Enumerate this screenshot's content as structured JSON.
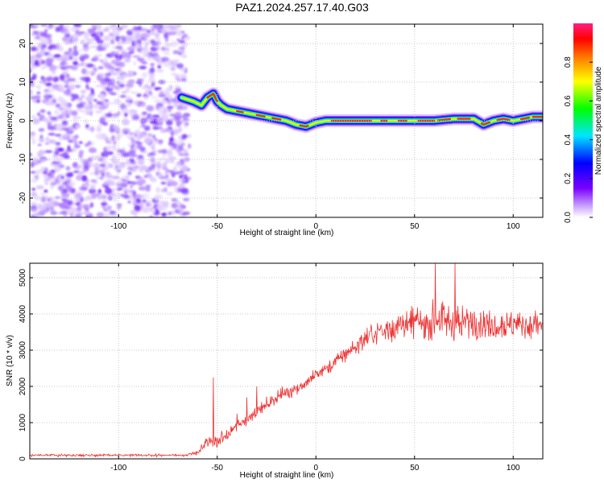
{
  "page": {
    "title": "PAZ1.2024.257.17.40.G03"
  },
  "chart_data": [
    {
      "type": "heatmap",
      "xlabel": "Height of straight line (km)",
      "ylabel": "Frequency (Hz)",
      "xlim": [
        -145,
        115
      ],
      "ylim": [
        -25,
        25
      ],
      "xticks": [
        -100,
        -50,
        0,
        50,
        100
      ],
      "yticks": [
        -20,
        -10,
        0,
        10,
        20
      ],
      "colorbar": {
        "label": "Normalized spectral amplitude",
        "range": [
          0,
          1
        ],
        "ticks": [
          "0.0",
          "0.2",
          "0.4",
          "0.6",
          "0.8"
        ],
        "tick_values": [
          0,
          0.2,
          0.4,
          0.6,
          0.8
        ],
        "colors": [
          "#ffffff",
          "#c8a0ff",
          "#7a00ff",
          "#0000ff",
          "#00e5ff",
          "#00ff00",
          "#ffff00",
          "#ff7f00",
          "#ff0000",
          "#ff1f80"
        ]
      },
      "noise_region_x": [
        -145,
        -65
      ],
      "ridge": {
        "x": [
          -68,
          -62,
          -58,
          -55,
          -52,
          -50,
          -48,
          -45,
          -40,
          -35,
          -30,
          -25,
          -20,
          -15,
          -10,
          -5,
          0,
          5,
          10,
          20,
          30,
          40,
          50,
          60,
          70,
          80,
          85,
          90,
          95,
          100,
          105,
          110,
          115
        ],
        "y": [
          6,
          5,
          4,
          6,
          7,
          5,
          4,
          3,
          2.5,
          2,
          1.5,
          1,
          0.5,
          0,
          -1,
          -1.5,
          -0.5,
          0,
          0,
          0,
          0,
          0,
          0,
          0,
          0.5,
          0.5,
          -1,
          0,
          0.5,
          0,
          0.5,
          1,
          1
        ]
      }
    },
    {
      "type": "line",
      "xlabel": "Height of straight line (km)",
      "ylabel": "SNR (10 * v/v)",
      "xlim": [
        -145,
        115
      ],
      "ylim": [
        0,
        5400
      ],
      "xticks": [
        -100,
        -50,
        0,
        50,
        100
      ],
      "yticks": [
        0,
        1000,
        2000,
        3000,
        4000,
        5000
      ],
      "color": "#ee3333",
      "envelope": {
        "x": [
          -145,
          -100,
          -65,
          -60,
          -55,
          -50,
          -45,
          -40,
          -35,
          -30,
          -25,
          -20,
          -15,
          -10,
          -5,
          0,
          5,
          10,
          15,
          20,
          25,
          30,
          40,
          50,
          60,
          70,
          80,
          90,
          100,
          115
        ],
        "mean": [
          100,
          100,
          100,
          180,
          450,
          500,
          650,
          900,
          1100,
          1300,
          1500,
          1700,
          1850,
          1950,
          2100,
          2300,
          2500,
          2700,
          2900,
          3100,
          3300,
          3450,
          3650,
          3750,
          3800,
          3750,
          3800,
          3750,
          3700,
          3700
        ],
        "spread": [
          50,
          50,
          50,
          100,
          280,
          300,
          300,
          250,
          250,
          250,
          280,
          280,
          300,
          300,
          300,
          300,
          320,
          350,
          380,
          400,
          420,
          450,
          550,
          650,
          700,
          700,
          700,
          700,
          600,
          550
        ]
      }
    }
  ]
}
